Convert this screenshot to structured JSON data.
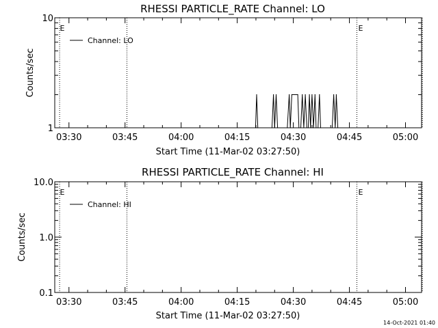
{
  "chart_data": [
    {
      "type": "line",
      "title": "RHESSI PARTICLE_RATE Channel: LO",
      "xlabel": "Start Time (11-Mar-02 03:27:50)",
      "ylabel": "Counts/sec",
      "yscale": "log",
      "ylim": [
        1,
        10
      ],
      "y_ticks": [
        {
          "value": 1,
          "label": "1"
        },
        {
          "value": 10,
          "label": "10"
        }
      ],
      "xlim_minutes": [
        -3.8,
        94.3
      ],
      "x_ticks": [
        {
          "minute": 0,
          "label": "03:30"
        },
        {
          "minute": 15,
          "label": "03:45"
        },
        {
          "minute": 30,
          "label": "04:00"
        },
        {
          "minute": 45,
          "label": "04:15"
        },
        {
          "minute": 60,
          "label": "04:30"
        },
        {
          "minute": 75,
          "label": "04:45"
        },
        {
          "minute": 90,
          "label": "05:00"
        }
      ],
      "eclipse_lines_minutes": [
        -2.5,
        15.5,
        77.0,
        94.5
      ],
      "eclipse_markers": [
        {
          "minute": -1.8,
          "label": "E"
        },
        {
          "minute": 78.0,
          "label": "E"
        }
      ],
      "legend": "Channel: LO",
      "series": [
        {
          "name": "Channel: LO",
          "points": [
            [
              49.9,
              1
            ],
            [
              50.2,
              2
            ],
            [
              50.5,
              1
            ],
            [
              54.3,
              1
            ],
            [
              54.7,
              2
            ],
            [
              55.0,
              1
            ],
            [
              55.4,
              2
            ],
            [
              55.8,
              1
            ],
            [
              58.4,
              1
            ],
            [
              58.9,
              2
            ],
            [
              59.2,
              1
            ],
            [
              59.6,
              2
            ],
            [
              61.2,
              2
            ],
            [
              61.5,
              1
            ],
            [
              62.0,
              1
            ],
            [
              62.4,
              2
            ],
            [
              62.8,
              1
            ],
            [
              63.2,
              2
            ],
            [
              63.6,
              1
            ],
            [
              64.0,
              1
            ],
            [
              64.3,
              2
            ],
            [
              64.6,
              1
            ],
            [
              65.0,
              2
            ],
            [
              65.4,
              1
            ],
            [
              65.8,
              2
            ],
            [
              66.1,
              1
            ],
            [
              66.6,
              1
            ],
            [
              67.0,
              2
            ],
            [
              67.3,
              1
            ],
            [
              70.4,
              1
            ],
            [
              70.8,
              2
            ],
            [
              71.2,
              1
            ],
            [
              71.5,
              2
            ],
            [
              71.9,
              1
            ]
          ]
        }
      ]
    },
    {
      "type": "line",
      "title": "RHESSI PARTICLE_RATE Channel: HI",
      "xlabel": "Start Time (11-Mar-02 03:27:50)",
      "ylabel": "Counts/sec",
      "yscale": "log",
      "ylim": [
        0.1,
        10
      ],
      "y_ticks": [
        {
          "value": 0.1,
          "label": "0.1"
        },
        {
          "value": 1,
          "label": "1.0"
        },
        {
          "value": 10,
          "label": "10.0"
        }
      ],
      "xlim_minutes": [
        -3.8,
        94.3
      ],
      "x_ticks": [
        {
          "minute": 0,
          "label": "03:30"
        },
        {
          "minute": 15,
          "label": "03:45"
        },
        {
          "minute": 30,
          "label": "04:00"
        },
        {
          "minute": 45,
          "label": "04:15"
        },
        {
          "minute": 60,
          "label": "04:30"
        },
        {
          "minute": 75,
          "label": "04:45"
        },
        {
          "minute": 90,
          "label": "05:00"
        }
      ],
      "eclipse_lines_minutes": [
        -2.5,
        15.5,
        77.0,
        94.5
      ],
      "eclipse_markers": [
        {
          "minute": -1.8,
          "label": "E"
        },
        {
          "minute": 78.0,
          "label": "E"
        }
      ],
      "legend": "Channel: HI",
      "series": [
        {
          "name": "Channel: HI",
          "points": []
        }
      ]
    }
  ],
  "footer": {
    "timestamp": "14-Oct-2021 01:40"
  }
}
